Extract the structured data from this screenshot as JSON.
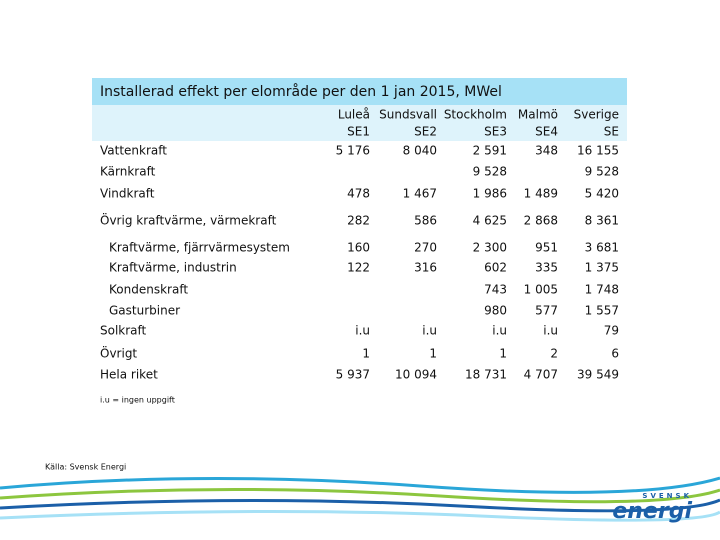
{
  "title": "Installerad effekt per elområde per den 1 jan 2015, MWel",
  "columns": [
    {
      "name": "Luleå",
      "code": "SE1"
    },
    {
      "name": "Sundsvall",
      "code": "SE2"
    },
    {
      "name": "Stockholm",
      "code": "SE3"
    },
    {
      "name": "Malmö",
      "code": "SE4"
    },
    {
      "name": "Sverige",
      "code": "SE"
    }
  ],
  "rows": [
    {
      "label": "Vattenkraft",
      "cells": [
        "5 176",
        "8 040",
        "2 591",
        "348",
        "16 155"
      ]
    },
    {
      "label": "Kärnkraft",
      "cells": [
        null,
        null,
        "9 528",
        null,
        "9 528"
      ]
    },
    {
      "label": "Vindkraft",
      "cells": [
        "478",
        "1 467",
        "1 986",
        "1 489",
        "5 420"
      ]
    },
    {
      "label": "Övrig kraftvärme, värmekraft",
      "cells": [
        "282",
        "586",
        "4 625",
        "2 868",
        "8 361"
      ]
    },
    {
      "label": "Kraftvärme, fjärrvärmesystem",
      "indent": true,
      "cells": [
        "160",
        "270",
        "2 300",
        "951",
        "3 681"
      ]
    },
    {
      "label": "Kraftvärme, industrin",
      "indent": true,
      "cells": [
        "122",
        "316",
        "602",
        "335",
        "1 375"
      ]
    },
    {
      "label": "Kondenskraft",
      "indent": true,
      "cells": [
        null,
        null,
        "743",
        "1 005",
        "1 748"
      ]
    },
    {
      "label": "Gasturbiner",
      "indent": true,
      "cells": [
        null,
        null,
        "980",
        "577",
        "1 557"
      ]
    },
    {
      "label": "Solkraft",
      "cells": [
        "i.u",
        "i.u",
        "i.u",
        "i.u",
        "79"
      ]
    },
    {
      "label": "Övrigt",
      "cells": [
        "1",
        "1",
        "1",
        "2",
        "6"
      ]
    },
    {
      "label": "Hela riket",
      "cells": [
        "5 937",
        "10 094",
        "18 731",
        "4 707",
        "39 549"
      ]
    }
  ],
  "footnote": "i.u = ingen uppgift",
  "source": "Källa: Svensk Energi",
  "logo": {
    "top": "SVENSK",
    "main": "energi"
  }
}
